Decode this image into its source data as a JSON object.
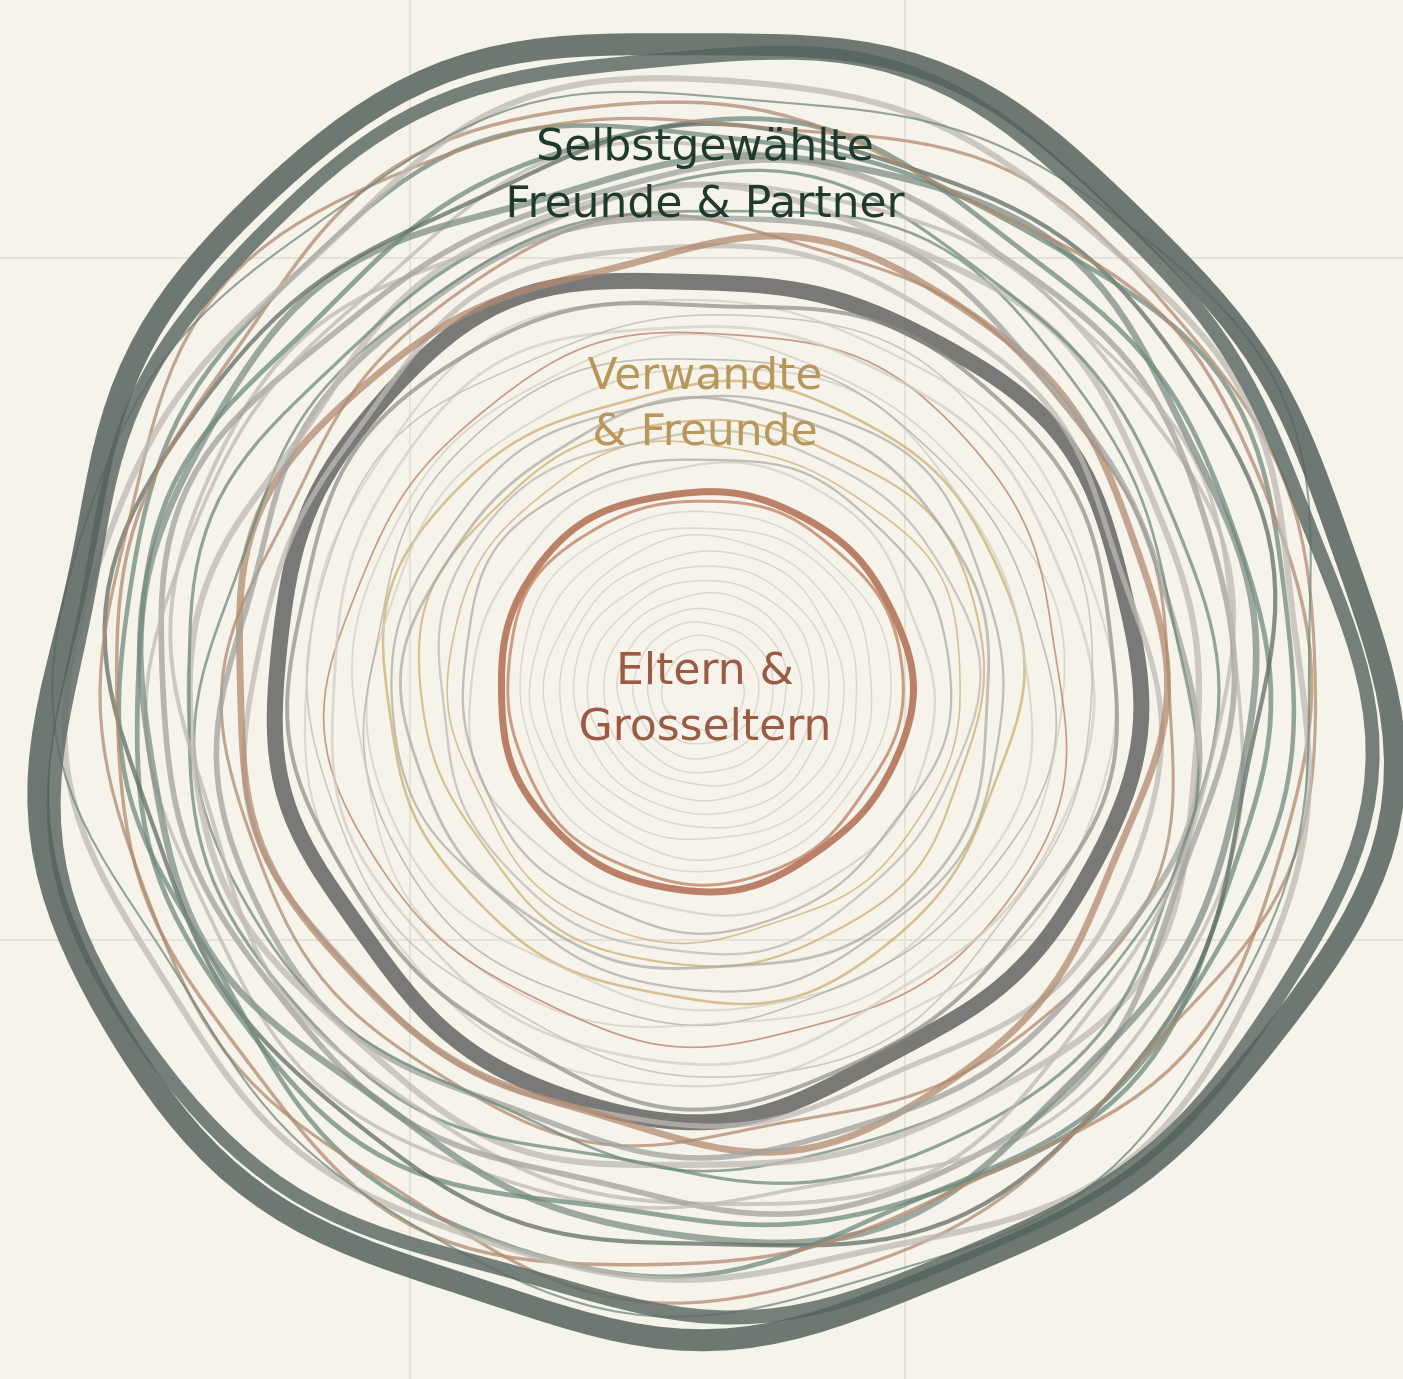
{
  "rings": [
    {
      "lines": [
        "Selbstgewählte",
        "Freunde & Partner"
      ]
    },
    {
      "lines": [
        "Verwandte",
        "& Freunde"
      ]
    },
    {
      "lines": [
        "Eltern &",
        "Grosseltern"
      ]
    }
  ]
}
